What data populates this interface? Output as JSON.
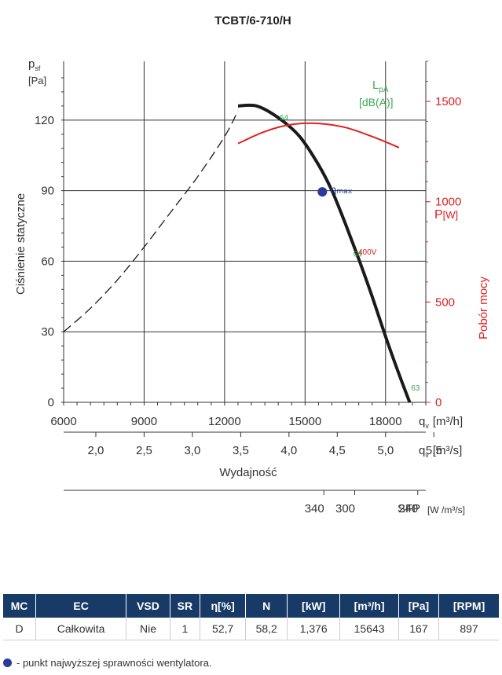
{
  "chart_data": {
    "type": "line",
    "title": "TCBT/6-710/H",
    "ylabel": "Ciśnienie statyczne",
    "ylabel_symbol": "p",
    "ylabel_sub": "sf",
    "ylabel_unit": "[Pa]",
    "xlabel": "Wydajność",
    "x_unit_m3h": "q",
    "x_unit_m3h_sub": "v",
    "x_unit_m3h_text": "[m³/h]",
    "x_unit_m3s": "q",
    "x_unit_m3s_sub": "v",
    "x_unit_m3s_text": "[m³/s]",
    "xlim": [
      6000,
      19500
    ],
    "ylim": [
      0,
      145
    ],
    "x_ticks": [
      6000,
      9000,
      12000,
      15000,
      18000
    ],
    "x_tick_labels": [
      "6000",
      "9000",
      "12000",
      "15000",
      "18000"
    ],
    "y_ticks": [
      0,
      30,
      60,
      90,
      120
    ],
    "y_tick_labels": [
      "0",
      "30",
      "60",
      "90",
      "120"
    ],
    "grid": true,
    "m3s_ticks": [
      2.0,
      2.5,
      3.0,
      3.5,
      4.0,
      4.5,
      5.0,
      5.5
    ],
    "m3s_tick_labels": [
      "2,0",
      "2,5",
      "3,0",
      "3,5",
      "4,0",
      "4,5",
      "5,0",
      "5,5"
    ],
    "sfp_ticks": [
      {
        "x": 15700,
        "label": "340"
      },
      {
        "x": 16850,
        "label": "300"
      },
      {
        "x": 19200,
        "label": "240"
      }
    ],
    "sfp_label": "SFP",
    "sfp_unit": "[W /m³/s]",
    "power_axis": {
      "label": "Pobór mocy",
      "unit_symbol": "P",
      "unit": "[W]",
      "ylim": [
        0,
        1700
      ],
      "ticks": [
        0,
        500,
        1000,
        1500
      ],
      "tick_labels": [
        "0",
        "500",
        "1000",
        "1500"
      ],
      "color": "#e02020"
    },
    "lpa_label": "L",
    "lpa_sub": "pA",
    "lpa_unit": "[dB(A)]",
    "lpa_color": "#3aaa50",
    "series": [
      {
        "kind": "pressure",
        "style": "solid",
        "color": "#1a1a1a",
        "points": [
          [
            12500,
            126
          ],
          [
            13200,
            126
          ],
          [
            14000,
            121
          ],
          [
            14800,
            113
          ],
          [
            15500,
            101
          ],
          [
            16000,
            90
          ],
          [
            16500,
            76
          ],
          [
            17000,
            61
          ],
          [
            17500,
            45
          ],
          [
            18000,
            28
          ],
          [
            18500,
            12
          ],
          [
            18900,
            0
          ]
        ]
      },
      {
        "kind": "pressure-unstable",
        "style": "dashed",
        "color": "#1a1a1a",
        "points": [
          [
            6000,
            30
          ],
          [
            7000,
            40
          ],
          [
            8000,
            52
          ],
          [
            9000,
            66
          ],
          [
            10000,
            81
          ],
          [
            11000,
            96
          ],
          [
            12000,
            113
          ],
          [
            12500,
            124
          ]
        ]
      },
      {
        "name": "400V",
        "kind": "power",
        "style": "solid",
        "color": "#e02020",
        "points": [
          [
            12500,
            1290
          ],
          [
            13500,
            1350
          ],
          [
            14500,
            1385
          ],
          [
            15500,
            1390
          ],
          [
            16500,
            1370
          ],
          [
            17500,
            1325
          ],
          [
            18500,
            1270
          ]
        ]
      }
    ],
    "noise_labels": [
      {
        "x": 14050,
        "y": 120,
        "label": "64"
      },
      {
        "x": 16800,
        "y": 62,
        "label": "64"
      },
      {
        "x": 18950,
        "y": 5,
        "label": "63"
      }
    ],
    "eta_point": {
      "x": 15643,
      "y": 89.5,
      "label": "η",
      "sub": "max"
    },
    "power_curve_label": "400V"
  },
  "table": {
    "headers": [
      "MC",
      "EC",
      "VSD",
      "SR",
      "η[%]",
      "N",
      "[kW]",
      "[m³/h]",
      "[Pa]",
      "[RPM]"
    ],
    "row": [
      "D",
      "Całkowita",
      "Nie",
      "1",
      "52,7",
      "58,2",
      "1,376",
      "15643",
      "167",
      "897"
    ]
  },
  "footnote": "- punkt najwyższej sprawności wentylatora."
}
